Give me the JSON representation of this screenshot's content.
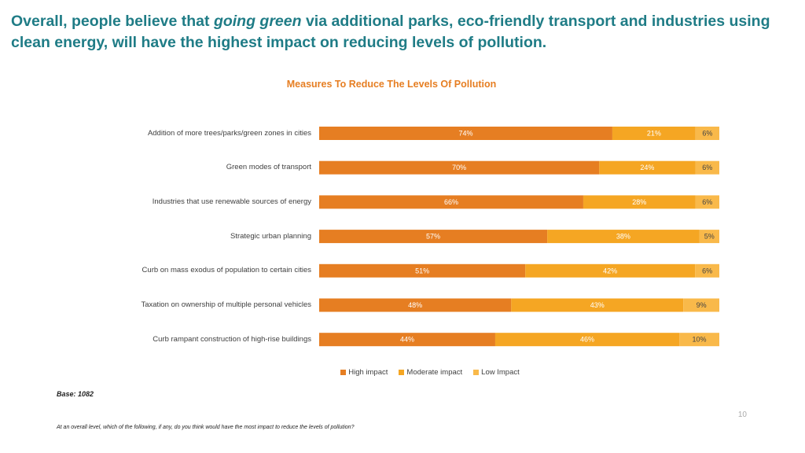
{
  "headline": {
    "part1": "Overall, people believe that ",
    "emphasis": "going green",
    "part2": " via additional parks, eco-friendly transport and industries using clean energy, will have the highest impact on reducing levels of pollution."
  },
  "colors": {
    "high": "#e67e22",
    "moderate": "#f5a623",
    "low": "#f9b94a"
  },
  "chart_data": {
    "type": "bar",
    "orientation": "horizontal",
    "stacked": true,
    "title": "Measures To Reduce The Levels Of Pollution",
    "categories": [
      "Addition of more trees/parks/green zones in cities",
      "Green modes of transport",
      "Industries that use renewable sources of energy",
      "Strategic urban planning",
      "Curb on mass exodus of population to certain cities",
      "Taxation on ownership of multiple personal vehicles",
      "Curb rampant construction of high-rise buildings"
    ],
    "series": [
      {
        "name": "High impact",
        "values": [
          74,
          70,
          66,
          57,
          51,
          48,
          44
        ]
      },
      {
        "name": "Moderate impact",
        "values": [
          21,
          24,
          28,
          38,
          42,
          43,
          46
        ]
      },
      {
        "name": "Low Impact",
        "values": [
          6,
          6,
          6,
          5,
          6,
          9,
          10
        ]
      }
    ],
    "data_labels": [
      [
        "74%",
        "21%",
        "6%"
      ],
      [
        "70%",
        "24%",
        "6%"
      ],
      [
        "66%",
        "28%",
        "6%"
      ],
      [
        "57%",
        "38%",
        "5%"
      ],
      [
        "51%",
        "42%",
        "6%"
      ],
      [
        "48%",
        "43%",
        "9%"
      ],
      [
        "44%",
        "46%",
        "10%"
      ]
    ],
    "legend_position": "bottom"
  },
  "base": "Base: 1082",
  "page_number": "10",
  "footnote": "At an overall level, which of the following, if any, do you think would have the most impact to reduce the levels of pollution?"
}
